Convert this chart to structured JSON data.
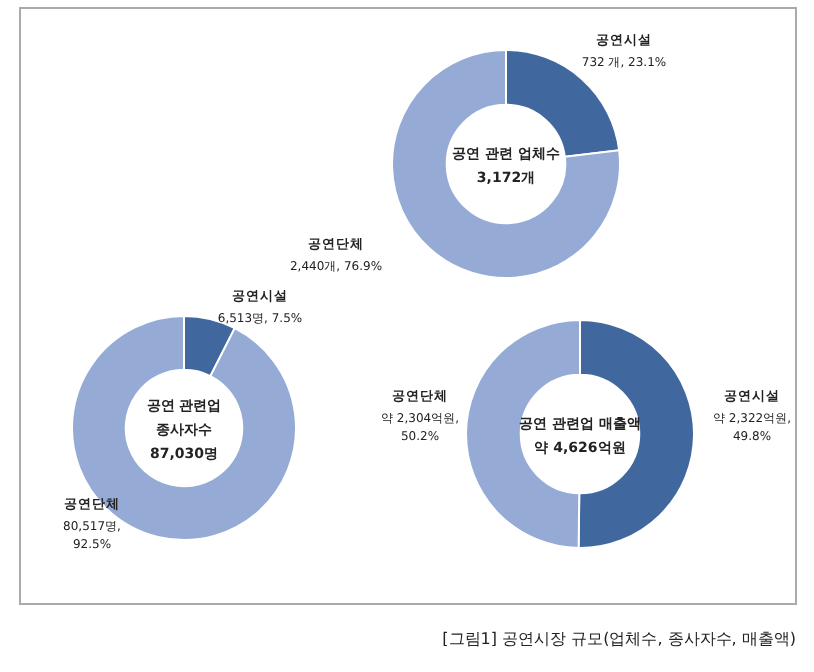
{
  "chart_data": [
    {
      "type": "donut",
      "categories": [
        "공연시설",
        "공연단체"
      ],
      "values": [
        732,
        2440
      ],
      "colors": [
        "#41689e",
        "#95abd6"
      ],
      "value_labels": [
        "732 개, 23.1%",
        "2,440개, 76.9%"
      ],
      "annotations": [
        "공연 관련 업체수",
        "3,172개"
      ]
    },
    {
      "type": "donut",
      "categories": [
        "공연시설",
        "공연단체"
      ],
      "values": [
        6513,
        80517
      ],
      "colors": [
        "#41689e",
        "#95abd6"
      ],
      "value_labels": [
        "6,513명, 7.5%",
        "80,517명, 92.5%"
      ],
      "annotations": [
        "공연 관련업",
        "종사자수",
        "87,030명"
      ]
    },
    {
      "type": "donut",
      "categories": [
        "공연시설",
        "공연단체"
      ],
      "values": [
        2322,
        2304
      ],
      "colors": [
        "#41689e",
        "#95abd6"
      ],
      "value_labels": [
        "약 2,322억원, 49.8%",
        "약 2,304억원, 50.2%"
      ],
      "annotations": [
        "공연 관련업 매출액",
        "약 4,626억원"
      ]
    },
    {
      "type": "other",
      "annotations": [
        "[그림1] 공연시장 규모(업체수, 종사자수, 매출액)"
      ]
    }
  ]
}
